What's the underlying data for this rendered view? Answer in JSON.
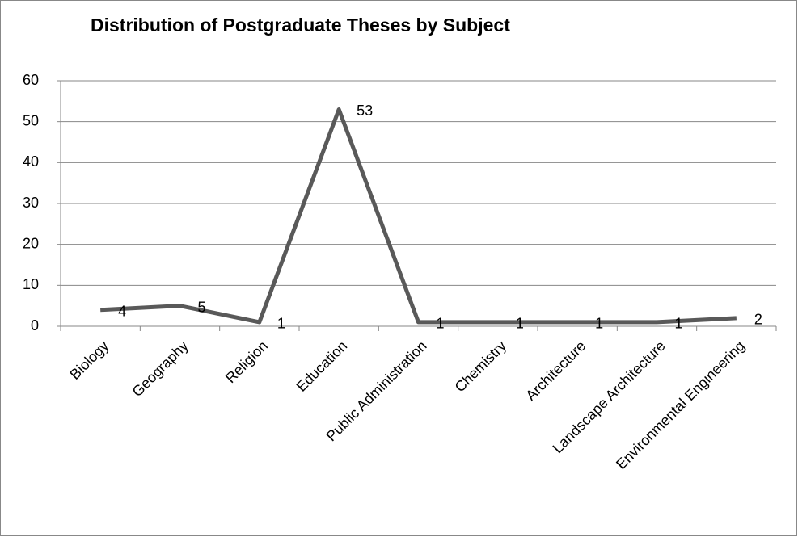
{
  "chart_data": {
    "type": "line",
    "title": "Distribution of Postgraduate Theses by Subject",
    "categories": [
      "Biology",
      "Geography",
      "Religion",
      "Education",
      "Public Administration",
      "Chemistry",
      "Architecture",
      "Landscape Architecture",
      "Environmental Engineering"
    ],
    "values": [
      4,
      5,
      1,
      53,
      1,
      1,
      1,
      1,
      2
    ],
    "color": "#595959",
    "ylim": [
      0,
      60
    ],
    "yticks": [
      0,
      10,
      20,
      30,
      40,
      50,
      60
    ],
    "grid": true,
    "data_labels": true
  }
}
